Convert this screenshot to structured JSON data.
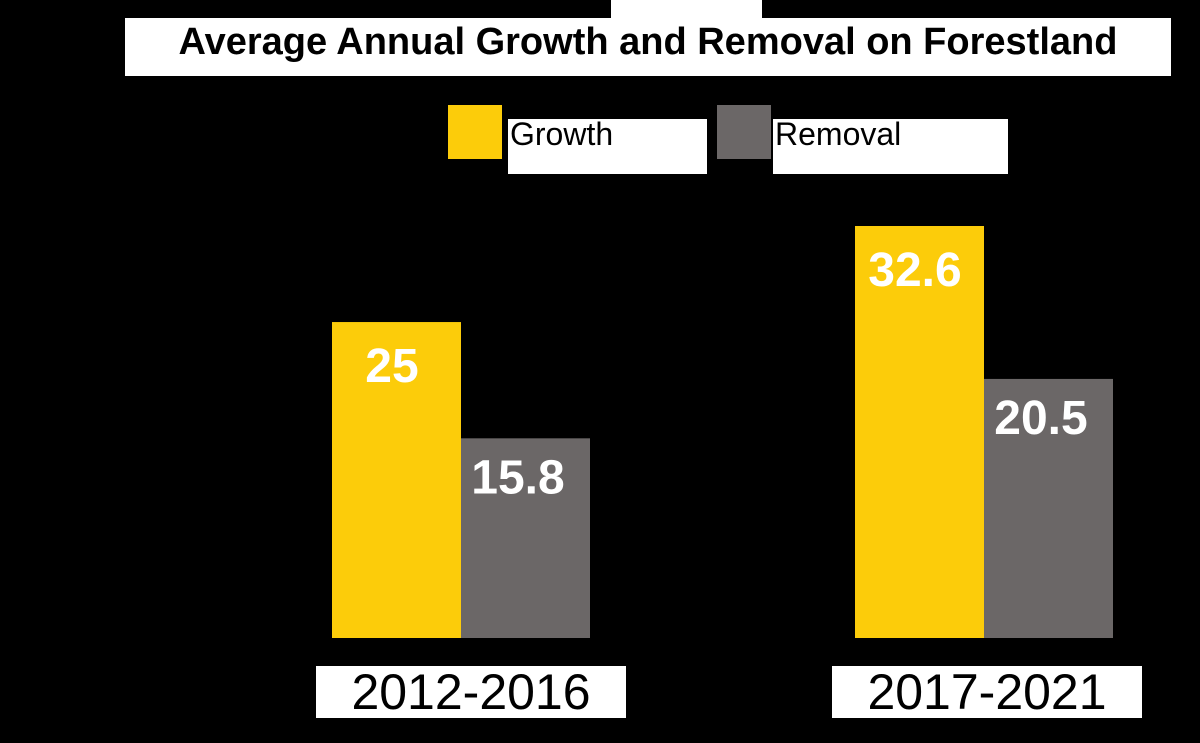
{
  "chart_data": {
    "type": "bar",
    "title": "Average Annual Growth and Removal on Forestland",
    "categories": [
      "2012-2016",
      "2017-2021"
    ],
    "series": [
      {
        "name": "Growth",
        "values": [
          25,
          32.6
        ],
        "color": "#fccc0a"
      },
      {
        "name": "Removal",
        "values": [
          15.8,
          20.5
        ],
        "color": "#6b6767"
      }
    ],
    "xlabel": "",
    "ylabel": "",
    "ylim": [
      0,
      32.6
    ],
    "grid": false,
    "legend_position": "top-center"
  }
}
